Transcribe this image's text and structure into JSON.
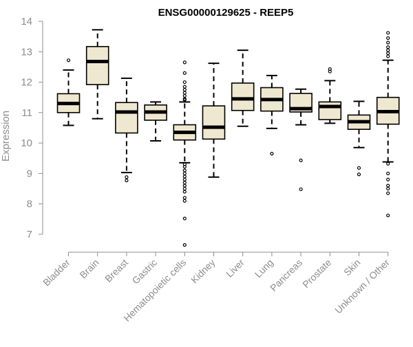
{
  "chart_data": {
    "type": "boxplot",
    "title": "ENSG00000129625 - REEP5",
    "ylabel": "Expression",
    "xlabel": "",
    "ylim": [
      6.5,
      14.2
    ],
    "yticks": [
      7,
      8,
      9,
      10,
      11,
      12,
      13,
      14
    ],
    "grid": false,
    "legend": "none",
    "colors": {
      "box_fill": "#efe8d0",
      "stroke": "#000000",
      "axis_text": "#8c8c8c"
    },
    "categories": [
      "Bladder",
      "Brain",
      "Breast",
      "Gastric",
      "Hematopoietic cells",
      "Kidney",
      "Liver",
      "Lung",
      "Pancreas",
      "Prostate",
      "Skin",
      "Unknown / Other"
    ],
    "boxes": [
      {
        "category": "Bladder",
        "whisker_low": 10.58,
        "q1": 11.0,
        "median": 11.3,
        "q3": 11.62,
        "whisker_high": 12.4,
        "outliers": [
          12.72
        ]
      },
      {
        "category": "Brain",
        "whisker_low": 10.8,
        "q1": 11.92,
        "median": 12.68,
        "q3": 13.17,
        "whisker_high": 13.72,
        "outliers": []
      },
      {
        "category": "Breast",
        "whisker_low": 9.03,
        "q1": 10.33,
        "median": 11.02,
        "q3": 11.33,
        "whisker_high": 12.13,
        "outliers": [
          8.88,
          8.77
        ]
      },
      {
        "category": "Gastric",
        "whisker_low": 10.07,
        "q1": 10.75,
        "median": 11.02,
        "q3": 11.25,
        "whisker_high": 11.35,
        "outliers": []
      },
      {
        "category": "Hematopoietic cells",
        "whisker_low": 9.35,
        "q1": 10.1,
        "median": 10.35,
        "q3": 10.6,
        "whisker_high": 11.35,
        "outliers": [
          12.65,
          12.3,
          12.0,
          11.85,
          11.75,
          11.65,
          11.55,
          11.45,
          11.42,
          9.3,
          9.22,
          9.1,
          9.0,
          8.9,
          8.8,
          8.7,
          8.6,
          8.5,
          8.4,
          8.2,
          8.1,
          7.52,
          6.65
        ]
      },
      {
        "category": "Kidney",
        "whisker_low": 8.88,
        "q1": 10.13,
        "median": 10.52,
        "q3": 11.22,
        "whisker_high": 12.62,
        "outliers": []
      },
      {
        "category": "Liver",
        "whisker_low": 10.55,
        "q1": 11.07,
        "median": 11.45,
        "q3": 11.97,
        "whisker_high": 13.05,
        "outliers": []
      },
      {
        "category": "Lung",
        "whisker_low": 10.48,
        "q1": 11.05,
        "median": 11.43,
        "q3": 11.82,
        "whisker_high": 12.22,
        "outliers": [
          9.65
        ]
      },
      {
        "category": "Pancreas",
        "whisker_low": 10.6,
        "q1": 11.02,
        "median": 11.13,
        "q3": 11.63,
        "whisker_high": 11.77,
        "outliers": [
          9.43,
          8.48
        ]
      },
      {
        "category": "Prostate",
        "whisker_low": 10.65,
        "q1": 10.77,
        "median": 11.2,
        "q3": 11.35,
        "whisker_high": 12.05,
        "outliers": [
          12.43,
          12.35
        ]
      },
      {
        "category": "Skin",
        "whisker_low": 9.85,
        "q1": 10.45,
        "median": 10.7,
        "q3": 10.92,
        "whisker_high": 11.37,
        "outliers": [
          9.18,
          8.97
        ]
      },
      {
        "category": "Unknown / Other",
        "whisker_low": 9.38,
        "q1": 10.62,
        "median": 11.03,
        "q3": 11.5,
        "whisker_high": 12.72,
        "outliers": [
          13.62,
          13.45,
          13.3,
          13.15,
          13.05,
          12.95,
          12.85,
          9.32,
          9.0,
          8.8,
          8.6,
          8.5,
          8.35,
          7.62
        ]
      }
    ]
  }
}
